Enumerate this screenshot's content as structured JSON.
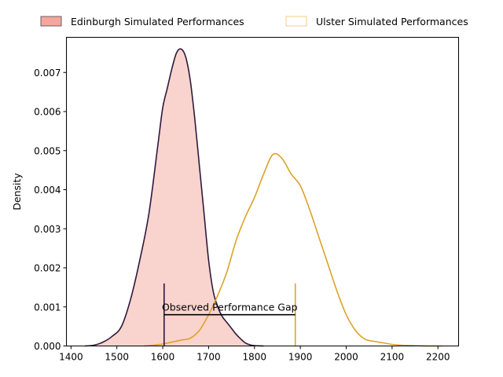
{
  "chart_data": {
    "type": "area",
    "title": "",
    "xlabel": "",
    "ylabel": "Density",
    "xlim": [
      1390,
      2245
    ],
    "ylim": [
      0,
      0.0079
    ],
    "grid": false,
    "legend_position": "top",
    "x_ticks": [
      1400,
      1500,
      1600,
      1700,
      1800,
      1900,
      2000,
      2100,
      2200
    ],
    "x_tick_labels": [
      "1400",
      "1500",
      "1600",
      "1700",
      "1800",
      "1900",
      "2000",
      "2100",
      "2200"
    ],
    "y_ticks": [
      0,
      0.001,
      0.002,
      0.003,
      0.004,
      0.005,
      0.006,
      0.007
    ],
    "y_tick_labels": [
      "0.000",
      "0.001",
      "0.002",
      "0.003",
      "0.004",
      "0.005",
      "0.006",
      "0.007"
    ],
    "series": [
      {
        "name": "Edinburgh Simulated Performances",
        "fill_color": "#f4a79c",
        "line_color": "#2d1a3e",
        "filled": true,
        "x": [
          1430,
          1450,
          1470,
          1490,
          1510,
          1530,
          1550,
          1570,
          1590,
          1600,
          1610,
          1620,
          1630,
          1640,
          1650,
          1660,
          1670,
          1680,
          1690,
          1700,
          1710,
          1720,
          1730,
          1740,
          1750,
          1760,
          1770,
          1780,
          1790,
          1800,
          1820
        ],
        "y": [
          0.0,
          2e-05,
          0.0001,
          0.00025,
          0.0005,
          0.0012,
          0.0022,
          0.0034,
          0.0052,
          0.0061,
          0.0066,
          0.0071,
          0.0075,
          0.0076,
          0.0074,
          0.0068,
          0.0058,
          0.0046,
          0.0034,
          0.0022,
          0.0014,
          0.001,
          0.00075,
          0.0006,
          0.00045,
          0.0003,
          0.00018,
          8e-05,
          3e-05,
          1e-05,
          0.0
        ]
      },
      {
        "name": "Ulster Simulated Performances",
        "fill_color": "none",
        "line_color": "#daa329",
        "filled": false,
        "x": [
          1560,
          1580,
          1600,
          1620,
          1640,
          1660,
          1680,
          1700,
          1720,
          1740,
          1760,
          1780,
          1800,
          1820,
          1840,
          1860,
          1880,
          1900,
          1920,
          1940,
          1960,
          1980,
          2000,
          2020,
          2040,
          2060,
          2080,
          2100,
          2120,
          2150,
          2180,
          2210
        ],
        "y": [
          0.0,
          2e-05,
          5e-05,
          0.0001,
          0.00015,
          0.0002,
          0.0004,
          0.0008,
          0.0013,
          0.0019,
          0.0027,
          0.0033,
          0.0038,
          0.0044,
          0.0049,
          0.0048,
          0.0044,
          0.0041,
          0.0035,
          0.0028,
          0.0021,
          0.0014,
          0.0008,
          0.0004,
          0.00018,
          0.00012,
          8e-05,
          4e-05,
          2e-05,
          1e-05,
          0.0,
          0.0
        ]
      }
    ],
    "markers": [
      {
        "name": "Edinburgh observed",
        "x": 1603,
        "y_top": 0.0016,
        "color": "#2d1a3e"
      },
      {
        "name": "Ulster observed",
        "x": 1889,
        "y_top": 0.0016,
        "color": "#daa329"
      }
    ],
    "gap_line": {
      "x1": 1603,
      "x2": 1889,
      "y": 0.0008,
      "color": "#000000"
    },
    "annotation": {
      "text": "Observed Performance Gap",
      "x": 1746,
      "y": 0.0009
    }
  }
}
